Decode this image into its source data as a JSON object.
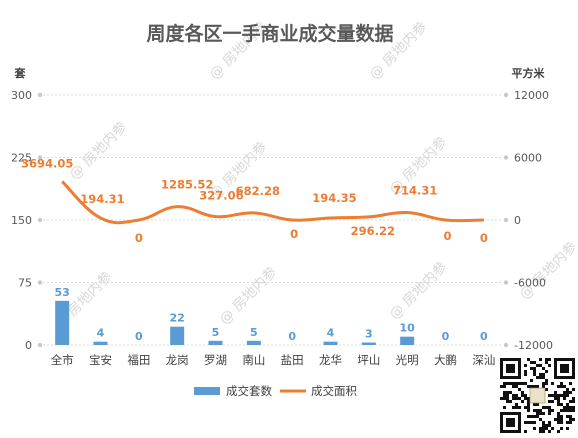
{
  "watermark": "@ 房地内参",
  "colors": {
    "bar": "#5b9bd5",
    "line": "#ed7d31",
    "grid": "#d9d9d9",
    "text": "#595959"
  },
  "chart_data": {
    "type": "bar",
    "title": "周度各区一手商业成交量数据",
    "left_axis_label": "套",
    "right_axis_label": "平方米",
    "left_ylim": [
      0,
      300
    ],
    "left_ticks": [
      "0",
      "75",
      "150",
      "225",
      "300"
    ],
    "right_ylim": [
      -12000,
      12000
    ],
    "right_ticks": [
      "-12000",
      "-6000",
      "0",
      "6000",
      "12000"
    ],
    "categories": [
      "全市",
      "宝安",
      "福田",
      "龙岗",
      "罗湖",
      "南山",
      "盐田",
      "龙华",
      "坪山",
      "光明",
      "大鹏",
      "深汕"
    ],
    "series": [
      {
        "name": "成交套数",
        "type": "bar",
        "axis": "left",
        "values": [
          53,
          4,
          0,
          22,
          5,
          5,
          0,
          4,
          3,
          10,
          0,
          0
        ],
        "labels": [
          "53",
          "4",
          "0",
          "22",
          "5",
          "5",
          "0",
          "4",
          "3",
          "10",
          "0",
          "0"
        ]
      },
      {
        "name": "成交面积",
        "type": "line",
        "axis": "right",
        "values": [
          3694.05,
          194.31,
          0,
          1285.52,
          327.06,
          682.28,
          0,
          194.35,
          296.22,
          714.31,
          0,
          0
        ],
        "labels": [
          "3694.05",
          "194.31",
          "0",
          "1285.52",
          "327.06",
          "682.28",
          "0",
          "194.35",
          "296.22",
          "714.31",
          "0",
          "0"
        ]
      }
    ],
    "gridlines": true,
    "legend_position": "bottom"
  }
}
